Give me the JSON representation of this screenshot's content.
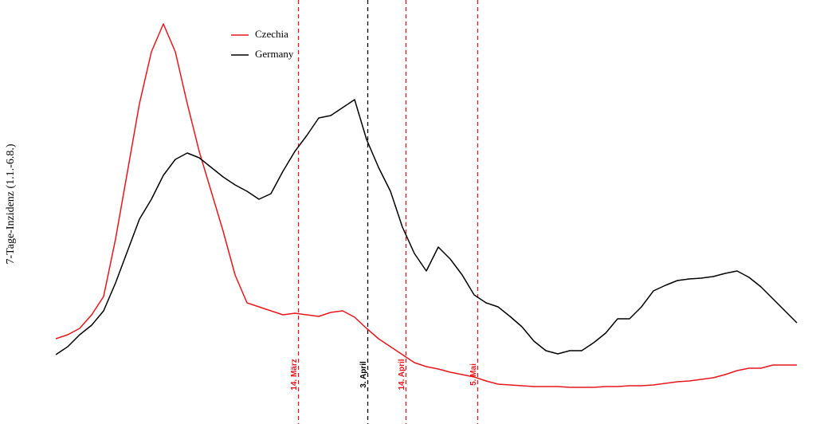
{
  "chart_data": {
    "type": "line",
    "y_label": "7-Tage-Inzidenz (1.1.-6.8.)",
    "xlim": [
      0,
      62
    ],
    "ylim": [
      0,
      100
    ],
    "series": [
      {
        "name": "Czechia",
        "color": "#e8161b",
        "values": [
          17.4,
          18.4,
          20,
          23.4,
          28,
          42.4,
          59.4,
          76.4,
          89.4,
          96.4,
          89.4,
          76.4,
          64.4,
          54.4,
          44.4,
          33.4,
          26.4,
          25.4,
          24.4,
          23.4,
          23.8,
          23.4,
          23,
          24,
          24.4,
          22.8,
          20,
          17.4,
          15.4,
          13.4,
          11.4,
          10.4,
          9.8,
          9,
          8.4,
          7.8,
          6.8,
          6,
          5.8,
          5.6,
          5.4,
          5.4,
          5.4,
          5.2,
          5.2,
          5.2,
          5.4,
          5.4,
          5.6,
          5.6,
          5.8,
          6.2,
          6.6,
          6.8,
          7.2,
          7.6,
          8.4,
          9.4,
          10,
          10,
          10.8,
          10.8,
          10.8
        ]
      },
      {
        "name": "Germany",
        "color": "#000000",
        "values": [
          13.4,
          15.4,
          18.4,
          20.8,
          24.4,
          31.4,
          39.4,
          47.4,
          52.4,
          58.4,
          62.4,
          64,
          62.8,
          60.4,
          58,
          56,
          54.4,
          52.4,
          53.8,
          59.4,
          64.4,
          68.4,
          72.8,
          73.4,
          75.4,
          77.4,
          67.4,
          60.4,
          54.4,
          45.4,
          38.8,
          34.4,
          40.4,
          37.4,
          33.4,
          28.4,
          26.4,
          25.4,
          23,
          20.4,
          16.8,
          14.4,
          13.6,
          14.4,
          14.4,
          16.4,
          18.8,
          22.4,
          22.4,
          25.4,
          29.4,
          30.8,
          32,
          32.4,
          32.6,
          33,
          33.8,
          34.4,
          32.8,
          30.4,
          27.4,
          24.4,
          21.4
        ]
      }
    ],
    "events": [
      {
        "label": "14. März",
        "x": 20.3,
        "color": "#e8161b"
      },
      {
        "label": "3. April",
        "x": 26.1,
        "color": "#000000"
      },
      {
        "label": "14. April",
        "x": 29.3,
        "color": "#e8161b"
      },
      {
        "label": "5. Mai",
        "x": 35.3,
        "color": "#e8161b"
      }
    ]
  }
}
